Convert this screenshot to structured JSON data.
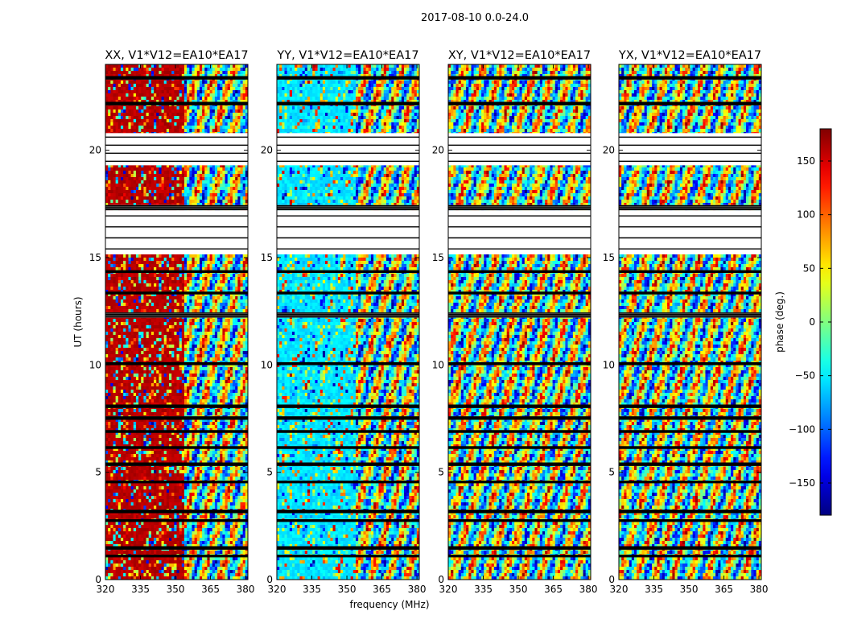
{
  "figure": {
    "suptitle": "2017-08-10 0.0-24.0"
  },
  "chart_data": {
    "type": "heatmap",
    "quantity": "visibility phase waterfall (frequency vs. UT)",
    "xlabel": "frequency (MHz)",
    "ylabel": "UT (hours)",
    "xlim": [
      320,
      381
    ],
    "ylim": [
      0,
      24
    ],
    "xticks": [
      320,
      335,
      350,
      365,
      380
    ],
    "yticks": [
      0,
      5,
      10,
      15,
      20
    ],
    "panels": [
      {
        "title": "XX, V1*V12=EA10*EA17",
        "pol": "XX"
      },
      {
        "title": "YY, V1*V12=EA10*EA17",
        "pol": "YY"
      },
      {
        "title": "XY, V1*V12=EA10*EA17",
        "pol": "XY"
      },
      {
        "title": "YX, V1*V12=EA10*EA17",
        "pol": "YX"
      }
    ],
    "flagged_ranges_hours": [
      [
        17.2,
        17.45
      ],
      [
        15.15,
        17.2
      ],
      [
        19.3,
        20.8
      ],
      [
        22.1,
        22.25
      ],
      [
        23.3,
        23.45
      ],
      [
        12.2,
        12.45
      ],
      [
        10.0,
        10.12
      ],
      [
        8.0,
        8.15
      ],
      [
        7.45,
        7.6
      ],
      [
        6.85,
        6.95
      ],
      [
        6.1,
        6.2
      ],
      [
        5.3,
        5.45
      ],
      [
        4.5,
        4.6
      ],
      [
        3.1,
        3.25
      ],
      [
        1.4,
        1.55
      ],
      [
        1.05,
        1.15
      ],
      [
        2.7,
        2.8
      ],
      [
        14.3,
        14.4
      ],
      [
        13.3,
        13.4
      ]
    ],
    "colorbar": {
      "label": "phase (deg.)",
      "range": [
        -180,
        180
      ],
      "ticks": [
        150,
        100,
        50,
        0,
        -50,
        -100,
        -150
      ],
      "tick_labels": [
        "150",
        "100",
        "50",
        "0",
        "−50",
        "−100",
        "−150"
      ],
      "colormap": "jet"
    }
  }
}
